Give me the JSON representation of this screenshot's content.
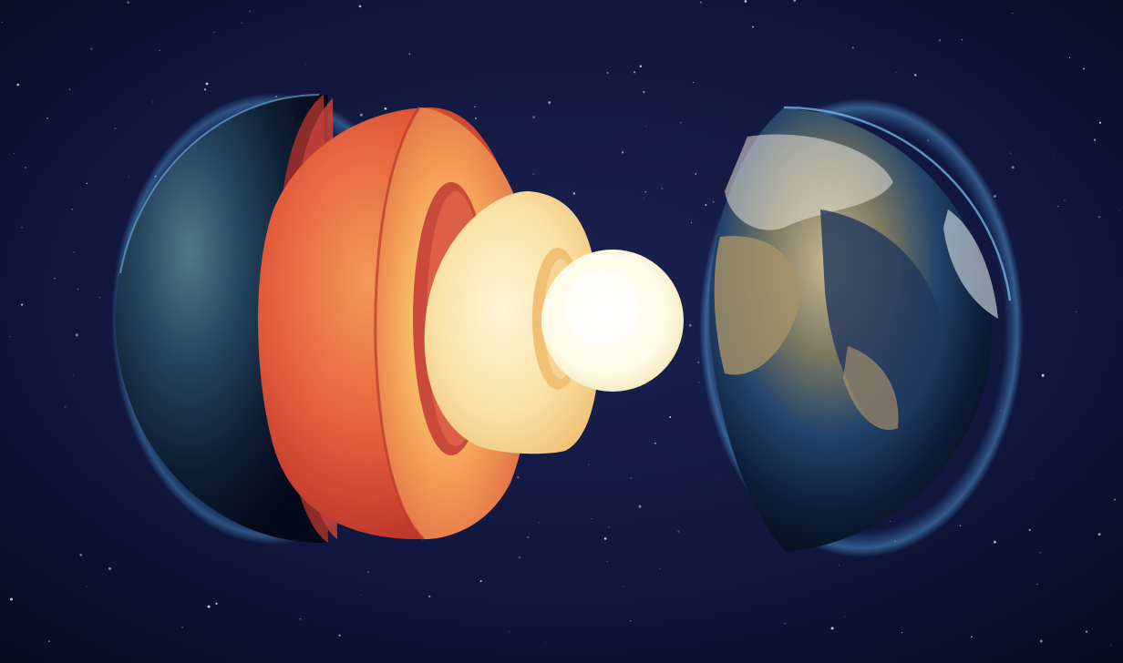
{
  "image": {
    "subject": "earth-interior-layers",
    "layers": [
      {
        "name": "crust"
      },
      {
        "name": "mantle"
      },
      {
        "name": "outer-core"
      },
      {
        "name": "inner-core"
      }
    ],
    "colors": {
      "space": "#0b1030",
      "ocean": "#1c3f6e",
      "land": "#9b8760",
      "mantle": "#e4593c",
      "outer_core": "#f7d08a",
      "inner_core": "#fffbe8"
    }
  }
}
